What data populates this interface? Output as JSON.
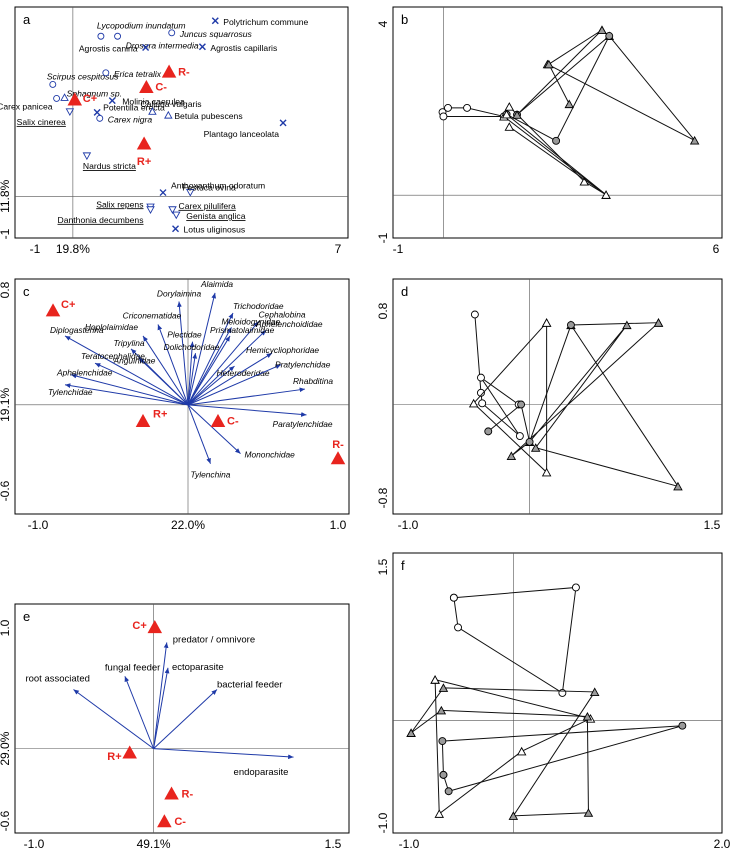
{
  "colors": {
    "triangle": "#e8241e",
    "arrow": "#1f3aa8",
    "label_red": "#e8241e",
    "line": "#111111",
    "grey_fill": "#9a9a9a",
    "white": "#ffffff",
    "axis_text": "#222222"
  },
  "chart_data": [
    {
      "panel": "a",
      "type": "scatter",
      "xaxis": {
        "min": -1,
        "max": 7,
        "ticks": [
          "-1",
          "7"
        ],
        "label": "19.8%"
      },
      "yaxis": {
        "min": -1,
        "max": 5,
        "ticks": [
          "-1",
          "5"
        ],
        "label": "11.8%"
      },
      "treatments": [
        {
          "label": "R-",
          "x": 2.54,
          "y": 3.32
        },
        {
          "label": "C-",
          "x": 1.94,
          "y": 2.91
        },
        {
          "label": "C+",
          "x": 0.05,
          "y": 2.58
        },
        {
          "label": "R+",
          "x": 1.88,
          "y": 1.41
        }
      ],
      "species": [
        {
          "label": "Polytrichum commune",
          "marker": "x",
          "x": 3.76,
          "y": 4.66,
          "italic": false,
          "underline": false
        },
        {
          "label": "Lycopodium inundatum",
          "marker": "o",
          "x": 0.74,
          "y": 4.25,
          "italic": true,
          "underline": false
        },
        {
          "label": "Drosera intermedia",
          "marker": "o",
          "x": 1.18,
          "y": 4.25,
          "italic": true,
          "underline": false
        },
        {
          "label": "Juncus squarrosus",
          "marker": "o",
          "x": 2.61,
          "y": 4.34,
          "italic": true,
          "underline": false
        },
        {
          "label": "Agrostis canina",
          "marker": "x",
          "x": 1.92,
          "y": 3.95,
          "italic": false,
          "underline": false
        },
        {
          "label": "Agrostis capillaris",
          "marker": "x",
          "x": 3.42,
          "y": 3.97,
          "italic": false,
          "underline": false
        },
        {
          "label": "Scirpus cespitosus",
          "marker": "o",
          "x": -0.53,
          "y": 2.97,
          "italic": true,
          "underline": false
        },
        {
          "label": "Erica tetralix",
          "marker": "o",
          "x": 0.87,
          "y": 3.28,
          "italic": true,
          "underline": false
        },
        {
          "label": "Sphagnum sp.",
          "marker": "o",
          "x": -0.43,
          "y": 2.6,
          "italic": true,
          "underline": false
        },
        {
          "label": "Molinia caerulea",
          "marker": "x",
          "x": 1.04,
          "y": 2.54,
          "italic": false,
          "underline": false
        },
        {
          "label": "Carex panicea",
          "marker": "tri",
          "x": -0.22,
          "y": 2.63,
          "italic": false,
          "underline": false
        },
        {
          "label": "Potentilla erecta",
          "marker": "x",
          "x": 0.64,
          "y": 2.23,
          "italic": false,
          "underline": false
        },
        {
          "label": "Calluna vulgaris",
          "marker": "tri",
          "x": 2.1,
          "y": 2.26,
          "italic": false,
          "underline": false
        },
        {
          "label": "Salix cinerea",
          "marker": "tri-down",
          "x": -0.08,
          "y": 2.24,
          "italic": false,
          "underline": true
        },
        {
          "label": "Carex nigra",
          "marker": "o",
          "x": 0.71,
          "y": 2.07,
          "italic": true,
          "underline": false
        },
        {
          "label": "Betula pubescens",
          "marker": "tri",
          "x": 2.52,
          "y": 2.16,
          "italic": false,
          "underline": false
        },
        {
          "label": "Plantago lanceolata",
          "marker": "x",
          "x": 5.55,
          "y": 1.95,
          "italic": false,
          "underline": false
        },
        {
          "label": "Nardus stricta",
          "marker": "tri-down",
          "x": 0.37,
          "y": 1.07,
          "italic": false,
          "underline": true
        },
        {
          "label": "Anthoxanthum odoratum",
          "marker": "x",
          "x": 2.38,
          "y": 0.1,
          "italic": false,
          "underline": false
        },
        {
          "label": "Festuca ovina",
          "marker": "tri-down",
          "x": 3.1,
          "y": 0.1,
          "italic": false,
          "underline": false
        },
        {
          "label": "Salix repens",
          "marker": "tri-down",
          "x": 2.05,
          "y": -0.29,
          "italic": false,
          "underline": true
        },
        {
          "label": "Danthonia decumbens",
          "marker": "tri-down",
          "x": 2.05,
          "y": -0.36,
          "italic": false,
          "underline": true
        },
        {
          "label": "Carex pilulifera",
          "marker": "tri-down",
          "x": 2.63,
          "y": -0.36,
          "italic": false,
          "underline": true
        },
        {
          "label": "Genista anglica",
          "marker": "tri-down",
          "x": 2.73,
          "y": -0.5,
          "italic": false,
          "underline": true
        },
        {
          "label": "Lotus uliginosus",
          "marker": "x",
          "x": 2.71,
          "y": -0.86,
          "italic": false,
          "underline": false
        }
      ]
    },
    {
      "panel": "b",
      "type": "line",
      "xaxis": {
        "min": -1,
        "max": 6,
        "ticks": [
          "-1",
          "6"
        ]
      },
      "yaxis": {
        "min": -1,
        "max": 4,
        "ticks": [
          "-1",
          "4"
        ]
      },
      "series": [
        {
          "marker": "circle-open",
          "points": [
            [
              -0.02,
              1.94
            ],
            [
              0.1,
              2.04
            ],
            [
              0.52,
              2.04
            ],
            [
              1.33,
              1.84
            ],
            [
              0.0,
              1.84
            ]
          ]
        },
        {
          "marker": "triangle-grey",
          "points": [
            [
              3.49,
              3.86
            ],
            [
              3.65,
              3.72
            ],
            [
              5.53,
              1.28
            ],
            [
              2.29,
              3.06
            ]
          ]
        },
        {
          "marker": "triangle-open",
          "points": [
            [
              1.45,
              2.07
            ],
            [
              3.1,
              0.32
            ],
            [
              3.58,
              0.01
            ],
            [
              1.33,
              1.84
            ]
          ]
        },
        {
          "marker": "circle-grey",
          "points": [
            [
              1.39,
              1.89
            ],
            [
              2.48,
              1.27
            ],
            [
              3.65,
              3.72
            ],
            [
              1.62,
              1.88
            ]
          ]
        },
        {
          "marker": "triangle-grey",
          "points": [
            [
              2.77,
              2.13
            ],
            [
              2.32,
              3.06
            ],
            [
              3.49,
              3.86
            ],
            [
              1.62,
              1.88
            ]
          ]
        },
        {
          "marker": "triangle-open",
          "points": [
            [
              1.39,
              1.89
            ],
            [
              3.58,
              0.01
            ],
            [
              1.45,
              1.6
            ]
          ]
        }
      ]
    },
    {
      "panel": "c",
      "type": "biplot",
      "xaxis": {
        "min": -1.0,
        "max": 1.0,
        "ticks": [
          "-1.0",
          "1.0"
        ],
        "label": "22.0%"
      },
      "yaxis": {
        "min": -0.6,
        "max": 0.8,
        "ticks": [
          "-0.6",
          "0.8"
        ],
        "label": "19.1%"
      },
      "vectors": [
        {
          "label": "Dorylaimina",
          "x": -0.06,
          "y": 0.72
        },
        {
          "label": "Alaimida",
          "x": 0.18,
          "y": 0.78
        },
        {
          "label": "Trichodoridae",
          "x": 0.3,
          "y": 0.64
        },
        {
          "label": "Cephalobina",
          "x": 0.47,
          "y": 0.58
        },
        {
          "label": "Aphelenchoididae",
          "x": 0.52,
          "y": 0.52
        },
        {
          "label": "Meloidogynidae",
          "x": 0.29,
          "y": 0.54
        },
        {
          "label": "Prismatolaimidae",
          "x": 0.28,
          "y": 0.48
        },
        {
          "label": "Criconematidae",
          "x": -0.2,
          "y": 0.56
        },
        {
          "label": "Plectidae",
          "x": 0.03,
          "y": 0.44
        },
        {
          "label": "Dolichodoridae",
          "x": 0.05,
          "y": 0.36
        },
        {
          "label": "Hoplolaimidae",
          "x": -0.3,
          "y": 0.48
        },
        {
          "label": "Tripylina",
          "x": -0.38,
          "y": 0.39
        },
        {
          "label": "Anguinidae",
          "x": -0.33,
          "y": 0.33
        },
        {
          "label": "Diplogasterina",
          "x": -0.82,
          "y": 0.48
        },
        {
          "label": "Teratocephalidae",
          "x": -0.62,
          "y": 0.29
        },
        {
          "label": "Aphelenchidae",
          "x": -0.78,
          "y": 0.21
        },
        {
          "label": "Tylenchidae",
          "x": -0.82,
          "y": 0.14
        },
        {
          "label": "Hemicycliophoridae",
          "x": 0.56,
          "y": 0.36
        },
        {
          "label": "Heteroderidae",
          "x": 0.31,
          "y": 0.27
        },
        {
          "label": "Pratylenchidae",
          "x": 0.62,
          "y": 0.28
        },
        {
          "label": "Rhabditina",
          "x": 0.78,
          "y": 0.11
        },
        {
          "label": "Paratylenchidae",
          "x": 0.79,
          "y": -0.07
        },
        {
          "label": "Mononchidae",
          "x": 0.35,
          "y": -0.34
        },
        {
          "label": "Tylenchina",
          "x": 0.15,
          "y": -0.41
        }
      ],
      "treatments": [
        {
          "label": "C+",
          "x": -0.9,
          "y": 0.66
        },
        {
          "label": "R+",
          "x": -0.3,
          "y": -0.11
        },
        {
          "label": "C-",
          "x": 0.2,
          "y": -0.11
        },
        {
          "label": "R-",
          "x": 1.0,
          "y": -0.37
        }
      ]
    },
    {
      "panel": "d",
      "type": "line",
      "xaxis": {
        "min": -1.0,
        "max": 1.5,
        "ticks": [
          "-1.0",
          "1.5"
        ]
      },
      "yaxis": {
        "min": -0.8,
        "max": 0.8,
        "ticks": [
          "-0.8",
          "0.8"
        ]
      },
      "series": [
        {
          "marker": "circle-open",
          "points": [
            [
              -0.45,
              0.77
            ],
            [
              -0.4,
              0.1
            ],
            [
              -0.39,
              0.01
            ],
            [
              -0.08,
              -0.27
            ],
            [
              -0.4,
              0.23
            ],
            [
              -0.09,
              0.0
            ]
          ]
        },
        {
          "marker": "triangle-open",
          "points": [
            [
              0.14,
              0.7
            ],
            [
              -0.46,
              0.01
            ],
            [
              0.14,
              -0.58
            ],
            [
              0.14,
              0.7
            ]
          ]
        },
        {
          "marker": "triangle-grey",
          "points": [
            [
              1.06,
              0.7
            ],
            [
              -0.15,
              -0.44
            ],
            [
              0.0,
              -0.32
            ],
            [
              0.8,
              0.68
            ],
            [
              0.05,
              -0.37
            ],
            [
              1.22,
              -0.7
            ],
            [
              0.34,
              0.68
            ],
            [
              1.06,
              0.7
            ]
          ]
        },
        {
          "marker": "circle-grey",
          "points": [
            [
              -0.34,
              -0.23
            ],
            [
              -0.07,
              0.0
            ],
            [
              0.0,
              -0.32
            ],
            [
              0.34,
              0.68
            ]
          ]
        }
      ]
    },
    {
      "panel": "e",
      "type": "biplot",
      "xaxis": {
        "min": -1.0,
        "max": 1.5,
        "ticks": [
          "-1.0",
          "1.5"
        ],
        "label": "49.1%"
      },
      "yaxis": {
        "min": -0.6,
        "max": 1.0,
        "ticks": [
          "-0.6",
          "1.0"
        ],
        "label": "29.0%"
      },
      "vectors": [
        {
          "label": "predator / omnivore",
          "x": 0.11,
          "y": 0.88
        },
        {
          "label": "ectoparasite",
          "x": 0.12,
          "y": 0.67
        },
        {
          "label": "bacterial feeder",
          "x": 0.53,
          "y": 0.49
        },
        {
          "label": "fungal feeder",
          "x": -0.24,
          "y": 0.6
        },
        {
          "label": "root associated",
          "x": -0.67,
          "y": 0.49
        },
        {
          "label": "endoparasite",
          "x": 1.17,
          "y": -0.07
        }
      ],
      "treatments": [
        {
          "label": "C+",
          "x": 0.01,
          "y": 1.01
        },
        {
          "label": "R+",
          "x": -0.2,
          "y": -0.03
        },
        {
          "label": "R-",
          "x": 0.15,
          "y": -0.37
        },
        {
          "label": "C-",
          "x": 0.09,
          "y": -0.6
        }
      ]
    },
    {
      "panel": "f",
      "type": "line",
      "xaxis": {
        "min": -1.0,
        "max": 2.0,
        "ticks": [
          "-1.0",
          "2.0"
        ]
      },
      "yaxis": {
        "min": -1.0,
        "max": 1.5,
        "ticks": [
          "-1.0",
          "1.5"
        ]
      },
      "series": [
        {
          "marker": "circle-open",
          "points": [
            [
              -0.57,
              1.2
            ],
            [
              0.6,
              1.3
            ],
            [
              0.47,
              0.27
            ],
            [
              -0.53,
              0.91
            ],
            [
              -0.57,
              1.2
            ]
          ]
        },
        {
          "marker": "triangle-open",
          "points": [
            [
              -0.75,
              0.4
            ],
            [
              -0.71,
              -0.91
            ],
            [
              0.08,
              -0.3
            ],
            [
              0.74,
              0.02
            ],
            [
              -0.75,
              0.4
            ]
          ]
        },
        {
          "marker": "triangle-grey",
          "points": [
            [
              -0.98,
              -0.12
            ],
            [
              -0.69,
              0.1
            ],
            [
              0.71,
              0.04
            ],
            [
              0.72,
              -0.9
            ],
            [
              0.0,
              -0.93
            ],
            [
              0.78,
              0.28
            ],
            [
              -0.67,
              0.32
            ],
            [
              -0.98,
              -0.12
            ]
          ]
        },
        {
          "marker": "circle-grey",
          "points": [
            [
              -0.67,
              -0.53
            ],
            [
              -0.68,
              -0.2
            ],
            [
              1.62,
              -0.05
            ],
            [
              -0.62,
              -0.69
            ],
            [
              -0.67,
              -0.53
            ]
          ]
        }
      ]
    }
  ],
  "panels": {
    "a": {
      "letter": "a",
      "ytick_top": "",
      "ytick_bottom": "-1",
      "xtick_left": "-1",
      "xtick_right": "7",
      "xlabel": "19.8%",
      "ylabel": "11.8%"
    },
    "b": {
      "letter": "b",
      "ytick_top": "4",
      "ytick_bottom": "-1",
      "xtick_left": "-1",
      "xtick_right": "6"
    },
    "c": {
      "letter": "c",
      "ytick_top": "0.8",
      "ytick_bottom": "-0.6",
      "xtick_left": "-1.0",
      "xtick_right": "1.0",
      "xlabel": "22.0%",
      "ylabel": "19.1%"
    },
    "d": {
      "letter": "d",
      "ytick_top": "0.8",
      "ytick_bottom": "-0.8",
      "xtick_left": "-1.0",
      "xtick_right": "1.5"
    },
    "e": {
      "letter": "e",
      "ytick_top": "1.0",
      "ytick_bottom": "-0.6",
      "xtick_left": "-1.0",
      "xtick_right": "1.5",
      "xlabel": "49.1%",
      "ylabel": "29.0%"
    },
    "f": {
      "letter": "f",
      "ytick_top": "1.5",
      "ytick_bottom": "-1.0",
      "xtick_left": "-1.0",
      "xtick_right": "2.0"
    }
  }
}
